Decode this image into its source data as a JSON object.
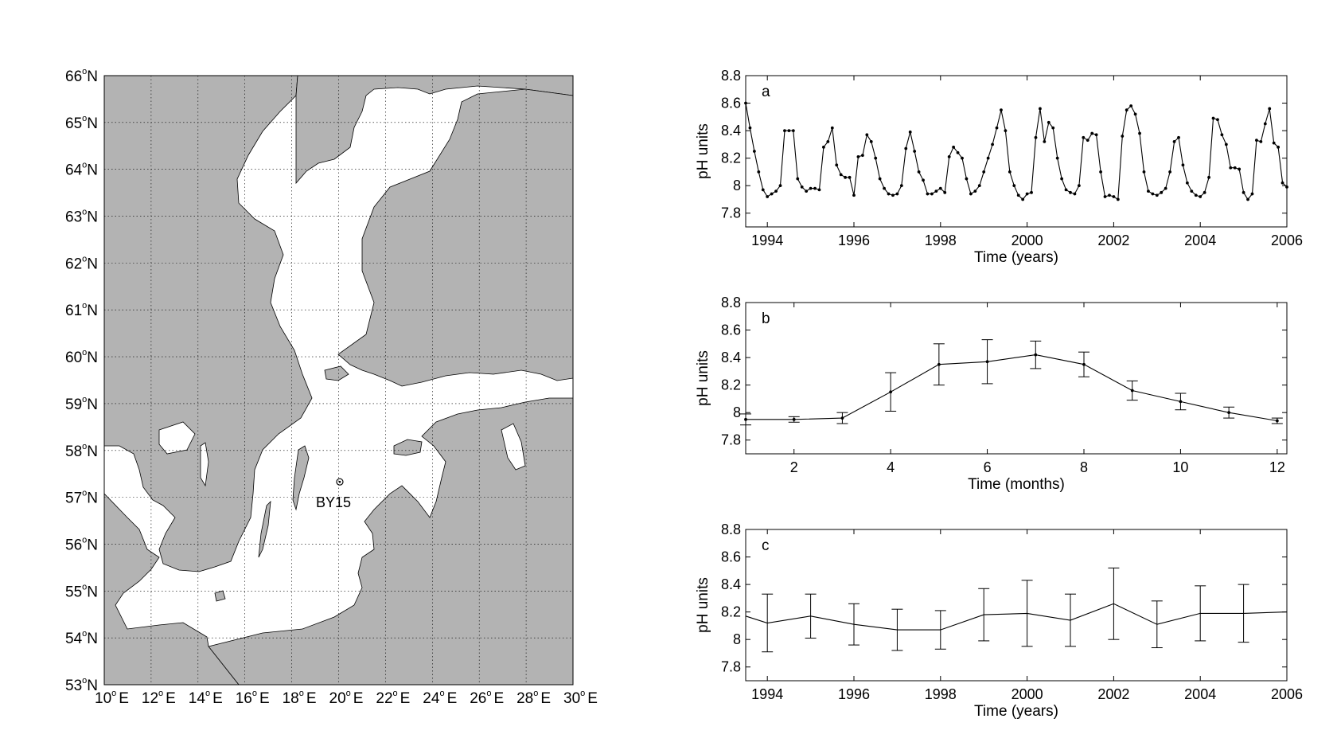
{
  "colors": {
    "land": "#b3b3b3",
    "sea": "#ffffff",
    "line": "#000000"
  },
  "map": {
    "lat_labels": [
      "66",
      "65",
      "64",
      "63",
      "62",
      "61",
      "60",
      "59",
      "58",
      "57",
      "56",
      "55",
      "54",
      "53"
    ],
    "lat_suffix": "N",
    "lon_labels": [
      "10",
      "12",
      "14",
      "16",
      "18",
      "20",
      "22",
      "24",
      "26",
      "28",
      "30"
    ],
    "lon_suffix": "E",
    "degree": "o",
    "station": {
      "label": "BY15",
      "lon": 20.05,
      "lat": 57.33
    }
  },
  "chart_data": [
    {
      "type": "line",
      "panel_label": "a",
      "xlabel": "Time (years)",
      "ylabel": "pH units",
      "xlim": [
        1993.5,
        2006
      ],
      "ylim": [
        7.7,
        8.8
      ],
      "xticks": [
        1994,
        1996,
        1998,
        2000,
        2002,
        2004,
        2006
      ],
      "yticks": [
        7.8,
        8,
        8.2,
        8.4,
        8.6,
        8.8
      ],
      "ytick_labels": [
        "7.8",
        "8",
        "8.2",
        "8.4",
        "8.6",
        "8.8"
      ],
      "markers": true,
      "x": [
        1993.5,
        1993.6,
        1993.7,
        1993.8,
        1993.9,
        1994.0,
        1994.1,
        1994.2,
        1994.3,
        1994.4,
        1994.5,
        1994.6,
        1994.7,
        1994.8,
        1994.9,
        1995.0,
        1995.1,
        1995.2,
        1995.3,
        1995.4,
        1995.5,
        1995.6,
        1995.7,
        1995.8,
        1995.9,
        1996.0,
        1996.1,
        1996.2,
        1996.3,
        1996.4,
        1996.5,
        1996.6,
        1996.7,
        1996.8,
        1996.9,
        1997.0,
        1997.1,
        1997.2,
        1997.3,
        1997.4,
        1997.5,
        1997.6,
        1997.7,
        1997.8,
        1997.9,
        1998.0,
        1998.1,
        1998.2,
        1998.3,
        1998.4,
        1998.5,
        1998.6,
        1998.7,
        1998.8,
        1998.9,
        1999.0,
        1999.1,
        1999.2,
        1999.3,
        1999.4,
        1999.5,
        1999.6,
        1999.7,
        1999.8,
        1999.9,
        2000.0,
        2000.1,
        2000.2,
        2000.3,
        2000.4,
        2000.5,
        2000.6,
        2000.7,
        2000.8,
        2000.9,
        2001.0,
        2001.1,
        2001.2,
        2001.3,
        2001.4,
        2001.5,
        2001.6,
        2001.7,
        2001.8,
        2001.9,
        2002.0,
        2002.1,
        2002.2,
        2002.3,
        2002.4,
        2002.5,
        2002.6,
        2002.7,
        2002.8,
        2002.9,
        2003.0,
        2003.1,
        2003.2,
        2003.3,
        2003.4,
        2003.5,
        2003.6,
        2003.7,
        2003.8,
        2003.9,
        2004.0,
        2004.1,
        2004.2,
        2004.3,
        2004.4,
        2004.5,
        2004.6,
        2004.7,
        2004.8,
        2004.9,
        2005.0,
        2005.1,
        2005.2,
        2005.3,
        2005.4,
        2005.5,
        2005.6,
        2005.7,
        2005.8,
        2005.9,
        2006.0
      ],
      "y": [
        8.6,
        8.42,
        8.25,
        8.1,
        7.97,
        7.92,
        7.94,
        7.96,
        8.0,
        8.4,
        8.4,
        8.4,
        8.05,
        7.99,
        7.96,
        7.98,
        7.98,
        7.97,
        8.28,
        8.32,
        8.42,
        8.15,
        8.08,
        8.06,
        8.06,
        7.93,
        8.21,
        8.22,
        8.37,
        8.32,
        8.2,
        8.05,
        7.98,
        7.94,
        7.93,
        7.94,
        8.0,
        8.27,
        8.39,
        8.25,
        8.1,
        8.04,
        7.94,
        7.94,
        7.96,
        7.98,
        7.95,
        8.21,
        8.28,
        8.24,
        8.2,
        8.05,
        7.94,
        7.96,
        8.0,
        8.1,
        8.2,
        8.3,
        8.42,
        8.55,
        8.4,
        8.1,
        8.0,
        7.93,
        7.9,
        7.94,
        7.95,
        8.35,
        8.56,
        8.32,
        8.46,
        8.42,
        8.2,
        8.05,
        7.97,
        7.95,
        7.94,
        8.0,
        8.35,
        8.33,
        8.38,
        8.37,
        8.1,
        7.92,
        7.93,
        7.92,
        7.9,
        8.36,
        8.55,
        8.58,
        8.52,
        8.38,
        8.1,
        7.96,
        7.94,
        7.93,
        7.95,
        7.98,
        8.1,
        8.32,
        8.35,
        8.15,
        8.02,
        7.96,
        7.93,
        7.92,
        7.95,
        8.06,
        8.49,
        8.48,
        8.37,
        8.3,
        8.13,
        8.13,
        8.12,
        7.95,
        7.9,
        7.94,
        8.33,
        8.32,
        8.45,
        8.56,
        8.31,
        8.28,
        8.02,
        7.99
      ]
    },
    {
      "type": "line",
      "panel_label": "b",
      "xlabel": "Time (months)",
      "ylabel": "pH units",
      "xlim": [
        1,
        12.2
      ],
      "ylim": [
        7.7,
        8.8
      ],
      "xticks": [
        2,
        4,
        6,
        8,
        10,
        12
      ],
      "yticks": [
        7.8,
        8,
        8.2,
        8.4,
        8.6,
        8.8
      ],
      "ytick_labels": [
        "7.8",
        "8",
        "8.2",
        "8.4",
        "8.6",
        "8.8"
      ],
      "markers": true,
      "x": [
        1,
        2,
        3,
        4,
        5,
        6,
        7,
        8,
        9,
        10,
        11,
        12
      ],
      "y": [
        7.95,
        7.95,
        7.96,
        8.15,
        8.35,
        8.37,
        8.42,
        8.35,
        8.16,
        8.08,
        8.0,
        7.94
      ],
      "err": [
        0.04,
        0.02,
        0.04,
        0.14,
        0.15,
        0.16,
        0.1,
        0.09,
        0.07,
        0.06,
        0.04,
        0.02
      ]
    },
    {
      "type": "line",
      "panel_label": "c",
      "xlabel": "Time (years)",
      "ylabel": "pH units",
      "xlim": [
        1993.5,
        2006
      ],
      "ylim": [
        7.7,
        8.8
      ],
      "xticks": [
        1994,
        1996,
        1998,
        2000,
        2002,
        2004,
        2006
      ],
      "yticks": [
        7.8,
        8,
        8.2,
        8.4,
        8.6,
        8.8
      ],
      "ytick_labels": [
        "7.8",
        "8",
        "8.2",
        "8.4",
        "8.6",
        "8.8"
      ],
      "markers": false,
      "x": [
        1993.5,
        1994,
        1995,
        1996,
        1997,
        1998,
        1999,
        2000,
        2001,
        2002,
        2003,
        2004,
        2005,
        2006
      ],
      "y": [
        8.17,
        8.12,
        8.17,
        8.11,
        8.07,
        8.07,
        8.18,
        8.19,
        8.14,
        8.26,
        8.11,
        8.19,
        8.19,
        8.2
      ],
      "err": [
        null,
        0.21,
        0.16,
        0.15,
        0.15,
        0.14,
        0.19,
        0.24,
        0.19,
        0.26,
        0.17,
        0.2,
        0.21,
        null
      ]
    }
  ]
}
